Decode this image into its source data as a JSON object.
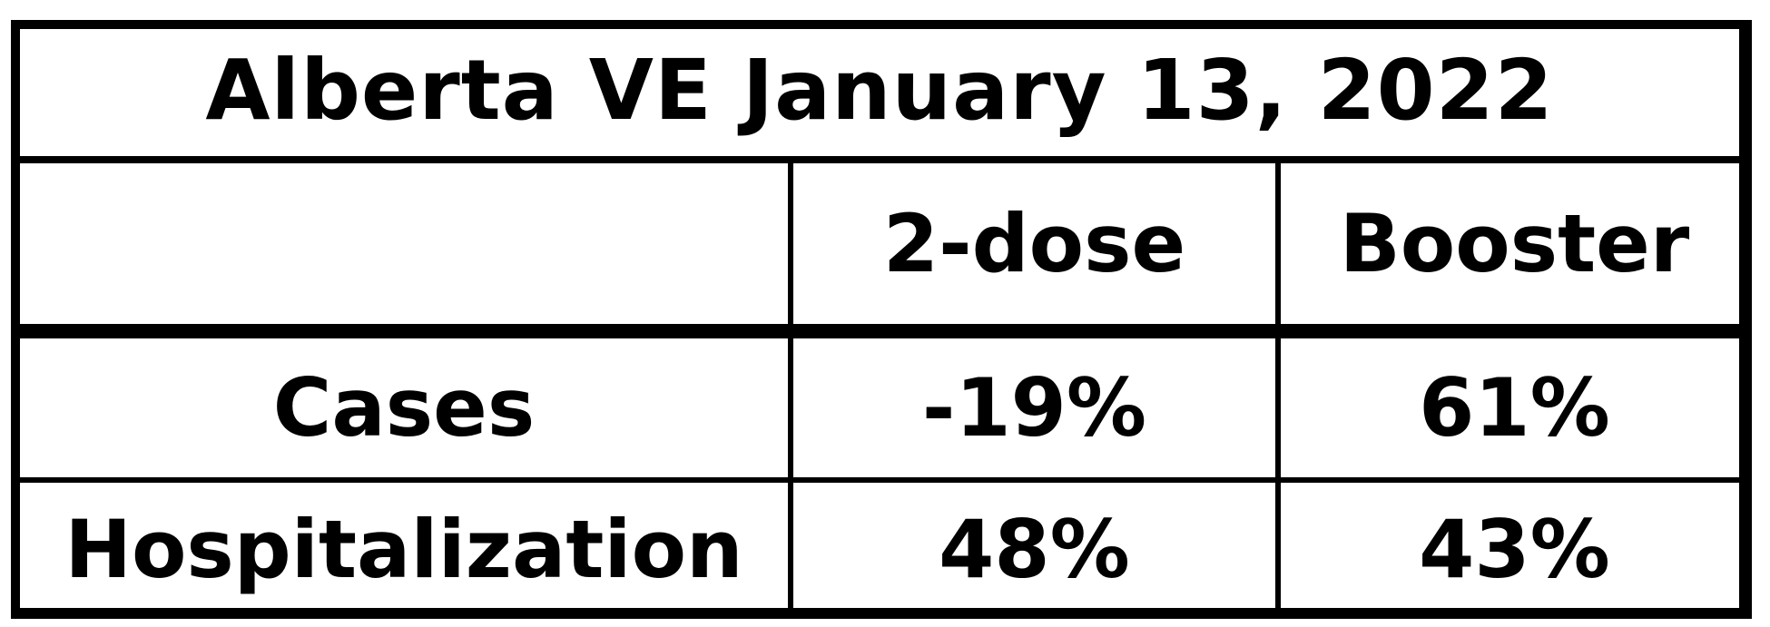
{
  "chart_data": {
    "type": "table",
    "title": "Alberta VE January 13, 2022",
    "columns": [
      "",
      "2-dose",
      "Booster"
    ],
    "rows": [
      {
        "label": "Cases",
        "values": [
          "-19%",
          "61%"
        ]
      },
      {
        "label": "Hospitalization",
        "values": [
          "48%",
          "43%"
        ]
      }
    ]
  }
}
